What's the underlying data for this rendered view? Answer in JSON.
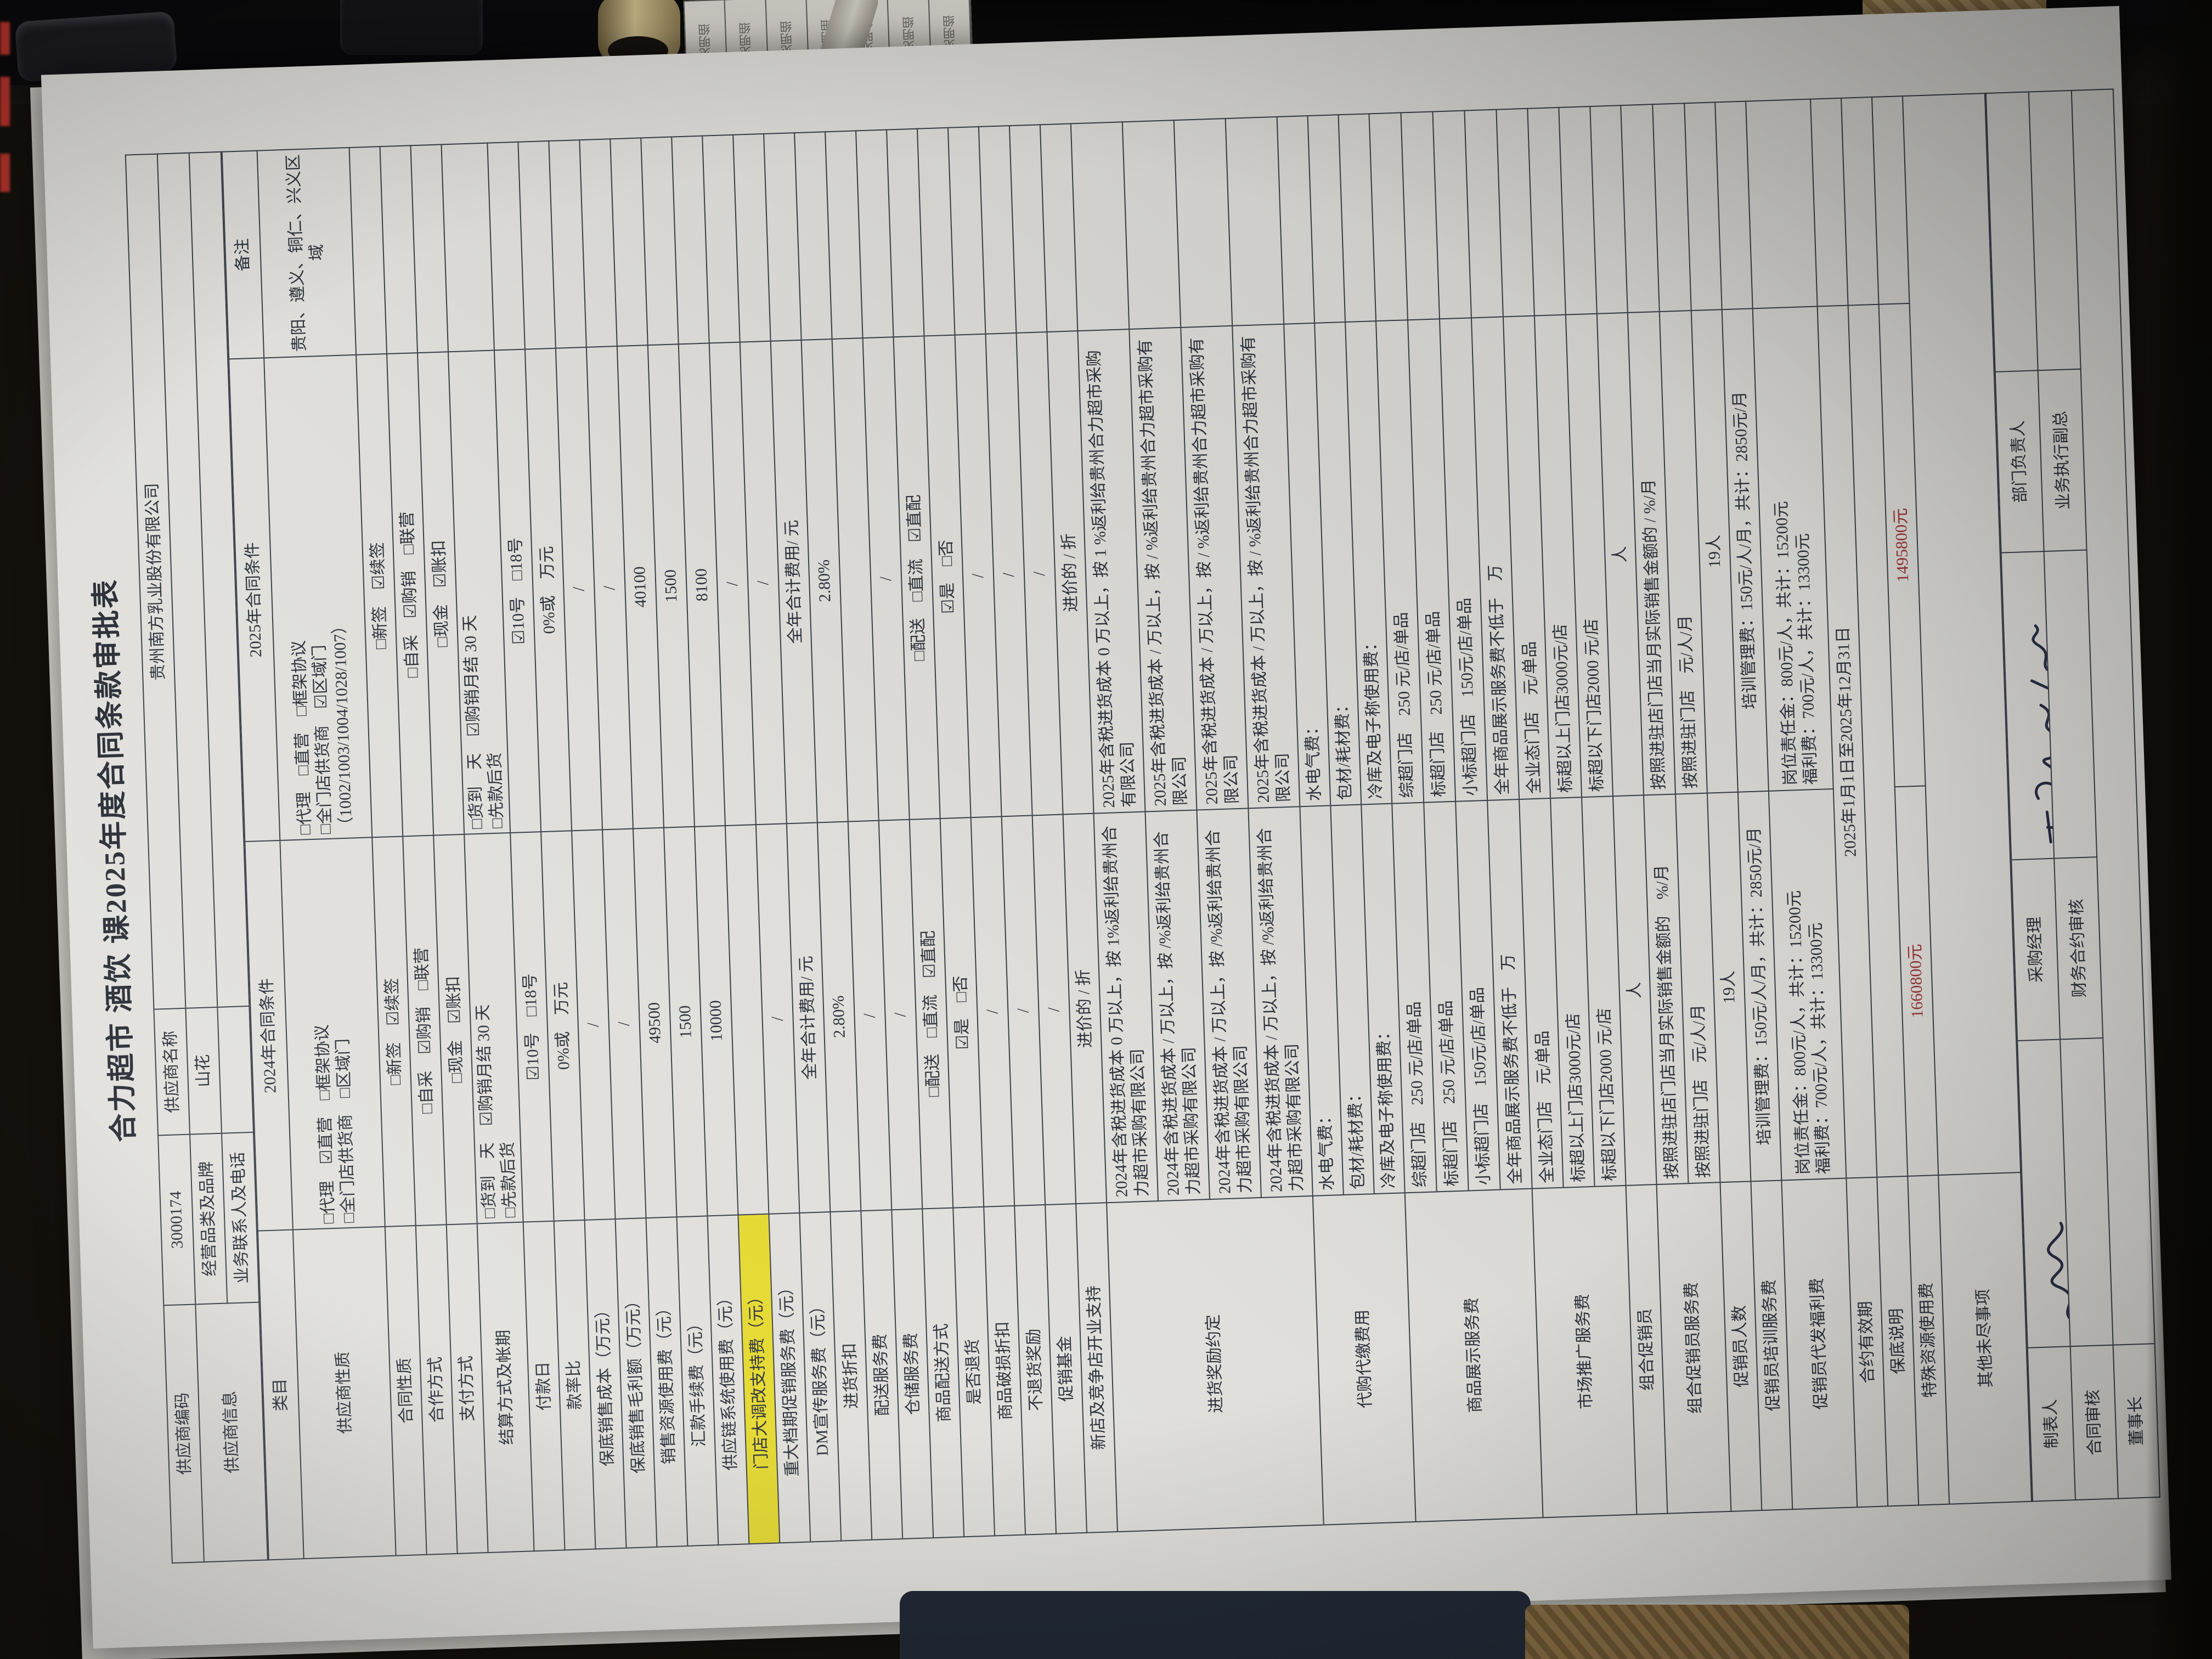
{
  "title": "合力超市 酒饮 课2025年度合同条款审批表",
  "supplier": {
    "code_label": "供应商编码",
    "code": "3000174",
    "name_label": "供应商名称",
    "name": "贵州南方乳业股份有限公司",
    "info_label": "供应商信息",
    "category_label": "经营品类及品牌",
    "category": "山花",
    "contact_label": "业务联系人及电话",
    "contact": ""
  },
  "table": {
    "header": {
      "col1": "类目",
      "col2": "2024年合同条件",
      "col3": "2025年合同条件",
      "col4": "备注"
    },
    "rows": [
      {
        "label": "供应商性质",
        "v2024": [
          "□代理　☑直营　□框架协议",
          "□全门店供货商　□区域门"
        ],
        "v2025": [
          "□代理　□直营　□框架协议",
          "□全门店供货商　☑区域门",
          "（1002/1003/1004/1028/1007）"
        ],
        "note": "贵阳、遵义、铜仁、兴义区域",
        "h": 168
      },
      {
        "label": "合同性质",
        "v2024": "□新签　☑续签",
        "v2025": "□新签　☑续签"
      },
      {
        "label": "合作方式",
        "v2024": "□自采　☑购销　□联营",
        "v2025": "□自采　☑购销　□联营"
      },
      {
        "label": "支付方式",
        "v2024": "□现金　☑账扣",
        "v2025": "□现金　☑账扣"
      },
      {
        "label": "结算方式及帐期",
        "v2024": [
          "□货到　天　☑购销月结 30 天",
          "□先款后货"
        ],
        "v2025": [
          "□货到　天　☑购销月结 30 天",
          "□先款后货"
        ],
        "h": 84
      },
      {
        "label": "付款日",
        "v2024": "☑10号　□18号",
        "v2025": "☑10号　□18号"
      },
      {
        "label": "款率比",
        "v2024": "0%或　万元",
        "v2025": "0%或　万元"
      },
      {
        "label": "保底销售成本（万元）",
        "v2024": "/",
        "v2025": "/"
      },
      {
        "label": "保底销售毛利额（万元）",
        "v2024": "/",
        "v2025": "/"
      },
      {
        "label": "销售资源使用费（元）",
        "v2024": "49500",
        "v2025": "40100"
      },
      {
        "label": "汇款手续费（元）",
        "v2024": "1500",
        "v2025": "1500"
      },
      {
        "label": "供应链系统使用费（元）",
        "v2024": "10000",
        "v2025": "8100"
      },
      {
        "label": "门店大调改支持费（元）",
        "v2024": "",
        "v2025": "/",
        "highlight": true
      },
      {
        "label": "重大档期促销服务费（元）",
        "v2024": "/",
        "v2025": "/"
      },
      {
        "label": "DM宣传服务费（元）",
        "v2024": "全年合计费用/ 元",
        "v2025": "全年合计费用/ 元"
      },
      {
        "label": "进货折扣",
        "v2024": "2.80%",
        "v2025": "2.80%"
      },
      {
        "label": "配送服务费",
        "v2024": "/",
        "v2025": ""
      },
      {
        "label": "仓储服务费",
        "v2024": "/",
        "v2025": "/"
      },
      {
        "label": "商品配送方式",
        "v2024": "□配送　□直流　☑直配",
        "v2025": "□配送　□直流　☑直配"
      },
      {
        "label": "是否退货",
        "v2024": "☑是　□否",
        "v2025": "☑是　□否"
      },
      {
        "label": "商品破损折扣",
        "v2024": "/",
        "v2025": "/"
      },
      {
        "label": "不退货奖励",
        "v2024": "/",
        "v2025": "/"
      },
      {
        "label": "促销基金",
        "v2024": "/",
        "v2025": "/"
      },
      {
        "label": "新店及竞争店开业支持",
        "v2024": "进价的 / 折",
        "v2025": "进价的 / 折"
      },
      {
        "label": "进货奖励约定",
        "type": "subrows",
        "subh": 94,
        "subs": [
          {
            "v2024": "2024年含税进货成本 0 万以上，按 1%返利给贵州合力超市采购有限公司",
            "v2025": "2025年含税进货成本 0 万以上，按 1 %返利给贵州合力超市采购有限公司"
          },
          {
            "v2024": "2024年含税进货成本 / 万以上，按 /%返利给贵州合力超市采购有限公司",
            "v2025": "2025年含税进货成本 / 万以上，按 / %返利给贵州合力超市采购有限公司"
          },
          {
            "v2024": "2024年含税进货成本 / 万以上，按 /%返利给贵州合力超市采购有限公司",
            "v2025": "2025年含税进货成本 / 万以上，按 / %返利给贵州合力超市采购有限公司"
          },
          {
            "v2024": "2024年含税进货成本 / 万以上，按 /%返利给贵州合力超市采购有限公司",
            "v2025": "2025年含税进货成本 / 万以上，按 / %返利给贵州合力超市采购有限公司"
          }
        ]
      },
      {
        "label": "代购代缴费用",
        "type": "subrows",
        "subh": 56,
        "subs": [
          {
            "v2024": "水电气费：",
            "v2025": "水电气费："
          },
          {
            "v2024": "包材/耗材费：",
            "v2025": "包材/耗材费："
          },
          {
            "v2024": "冷库及电子称使用费：",
            "v2025": "冷库及电子称使用费："
          }
        ]
      },
      {
        "label": "商品展示服务费",
        "type": "subrows",
        "subh": 58,
        "subs": [
          {
            "v2024": "综超门店　250 元/店/单品",
            "v2025": "综超门店　250 元/店/单品"
          },
          {
            "v2024": "标超门店　250 元/店/单品",
            "v2025": "标超门店　250 元/店/单品"
          },
          {
            "v2024": "小标超门店　150元/店/单品",
            "v2025": "小标超门店　150元/店/单品"
          },
          {
            "v2024": "全年商品展示服务费不低于　万",
            "v2025": "全年商品展示服务费不低于　万"
          }
        ]
      },
      {
        "label": "市场推广服务费",
        "type": "subrows",
        "subh": 57,
        "subs": [
          {
            "v2024": "全业态门店　元/单品",
            "v2025": "全业态门店　元/单品"
          },
          {
            "v2024": "标超以上门店3000元/店",
            "v2025": "标超以上门店3000元/店"
          },
          {
            "v2024": "标超以下门店2000 元/店",
            "v2025": "标超以下门店2000 元/店"
          }
        ]
      },
      {
        "label": "组合促销员",
        "v2024": "人",
        "v2025": "人"
      },
      {
        "label": "组合促销员服务费",
        "type": "subrows",
        "subh": 58,
        "subs": [
          {
            "v2024": "按照进驻店门店当月实际销售金额的　%/月",
            "v2025": "按照进驻店门店当月实际销售金额的 / %/月"
          },
          {
            "v2024": "按照进驻门店　元/人/月",
            "v2025": "按照进驻门店　元/人/月"
          }
        ]
      },
      {
        "label": "促销员人数",
        "v2024": "19人",
        "v2025": "19人"
      },
      {
        "label": "促销员培训服务费",
        "v2024": "培训管理费：150元/人/月，共计：2850元/月",
        "v2025": "培训管理费：150元/人/月，共计：2850元/月"
      },
      {
        "label": "促销员代发福利费",
        "v2024": [
          "岗位责任金：800元/人，共计：15200元",
          "福利费：700元/人，共计：13300元"
        ],
        "v2025": [
          "岗位责任金：800元/人，共计：15200元",
          "福利费：700元/人，共计：13300元"
        ],
        "h": 118
      },
      {
        "label": "合约有效期",
        "type": "merged2",
        "value": "2025年1月1日至2025年12月31日"
      },
      {
        "label": "保底说明",
        "type": "merged2",
        "value": ""
      },
      {
        "label": "特殊资源使用费",
        "v2024": "1660800元",
        "v2025": "1495800元",
        "red": true
      },
      {
        "label": "其他未尽事项",
        "type": "mergedAll",
        "value": "",
        "h": 150
      }
    ]
  },
  "signatures": {
    "row1": {
      "c1": "制表人",
      "c2_signed": true,
      "c3": "采购经理",
      "c4_signed": true,
      "c5": "部门负责人",
      "c6": ""
    },
    "row2": {
      "c1": "合同审核",
      "c2": "",
      "c3": "财务合约审核",
      "c4": "",
      "c5": "业务执行副总",
      "c6": ""
    },
    "row3": {
      "c1": "董事长",
      "c2": ""
    }
  },
  "background": {
    "tab_text": "见明细"
  },
  "colors": {
    "highlight": "#e8dc32",
    "red_value": "#9e3636",
    "grid_line": "#3c424b",
    "paper": "#e4e3df"
  }
}
